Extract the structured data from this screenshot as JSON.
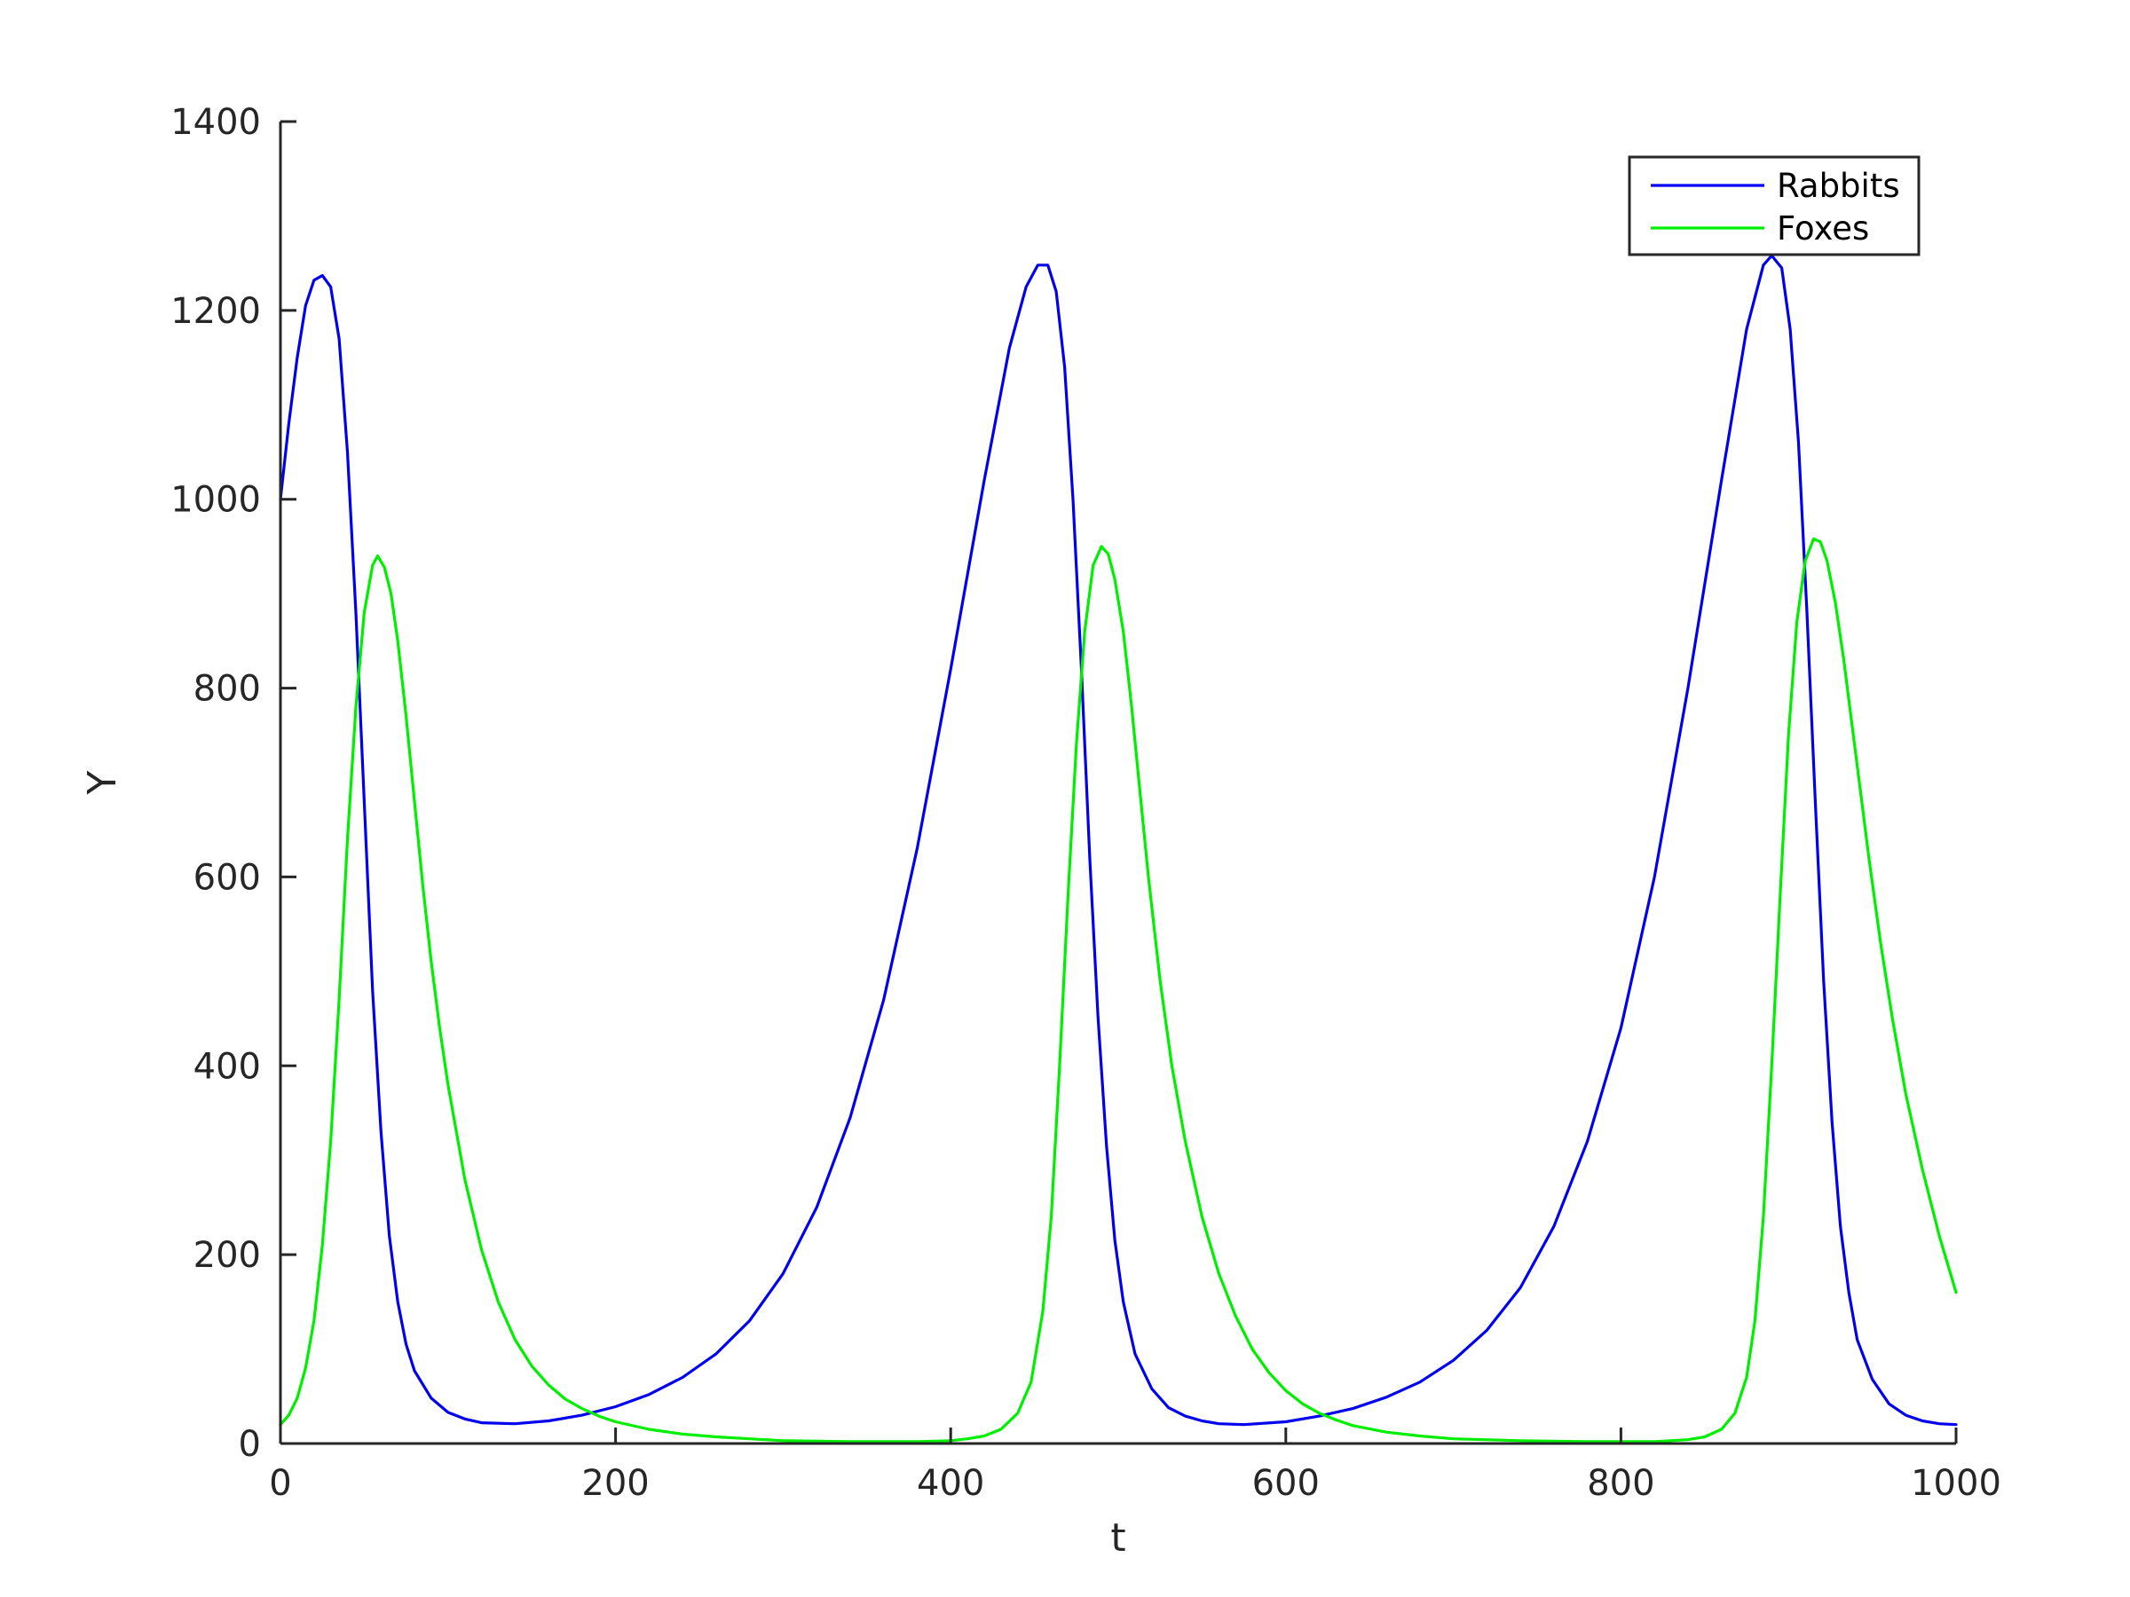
{
  "chart_data": {
    "type": "line",
    "title": "",
    "xlabel": "t",
    "ylabel": "Y",
    "xlim": [
      0,
      1000
    ],
    "ylim": [
      0,
      1400
    ],
    "xticks": [
      "0",
      "200",
      "400",
      "600",
      "800",
      "1000"
    ],
    "yticks": [
      "0",
      "200",
      "400",
      "600",
      "800",
      "1000",
      "1200",
      "1400"
    ],
    "grid": false,
    "legend_position": "top-right",
    "series": [
      {
        "name": "Rabbits",
        "color": "#0000ee",
        "points": [
          [
            0,
            1000
          ],
          [
            5,
            1080
          ],
          [
            10,
            1150
          ],
          [
            15,
            1205
          ],
          [
            20,
            1232
          ],
          [
            25,
            1237
          ],
          [
            30,
            1225
          ],
          [
            35,
            1170
          ],
          [
            40,
            1050
          ],
          [
            45,
            880
          ],
          [
            50,
            680
          ],
          [
            55,
            480
          ],
          [
            60,
            330
          ],
          [
            65,
            220
          ],
          [
            70,
            150
          ],
          [
            75,
            105
          ],
          [
            80,
            77
          ],
          [
            90,
            48
          ],
          [
            100,
            33
          ],
          [
            110,
            26
          ],
          [
            120,
            22
          ],
          [
            140,
            21
          ],
          [
            160,
            24
          ],
          [
            180,
            30
          ],
          [
            200,
            39
          ],
          [
            220,
            52
          ],
          [
            240,
            70
          ],
          [
            260,
            95
          ],
          [
            280,
            130
          ],
          [
            300,
            180
          ],
          [
            320,
            250
          ],
          [
            340,
            345
          ],
          [
            360,
            470
          ],
          [
            380,
            630
          ],
          [
            400,
            820
          ],
          [
            420,
            1020
          ],
          [
            435,
            1160
          ],
          [
            445,
            1225
          ],
          [
            452,
            1248
          ],
          [
            458,
            1248
          ],
          [
            463,
            1220
          ],
          [
            468,
            1140
          ],
          [
            473,
            1000
          ],
          [
            478,
            820
          ],
          [
            483,
            620
          ],
          [
            488,
            450
          ],
          [
            493,
            315
          ],
          [
            498,
            215
          ],
          [
            503,
            150
          ],
          [
            510,
            95
          ],
          [
            520,
            58
          ],
          [
            530,
            38
          ],
          [
            540,
            29
          ],
          [
            550,
            24
          ],
          [
            560,
            21
          ],
          [
            575,
            20
          ],
          [
            600,
            23
          ],
          [
            620,
            29
          ],
          [
            640,
            37
          ],
          [
            660,
            49
          ],
          [
            680,
            65
          ],
          [
            700,
            88
          ],
          [
            720,
            120
          ],
          [
            740,
            165
          ],
          [
            760,
            230
          ],
          [
            780,
            320
          ],
          [
            800,
            440
          ],
          [
            820,
            600
          ],
          [
            840,
            800
          ],
          [
            860,
            1020
          ],
          [
            875,
            1180
          ],
          [
            885,
            1248
          ],
          [
            890,
            1258
          ],
          [
            896,
            1245
          ],
          [
            901,
            1180
          ],
          [
            906,
            1060
          ],
          [
            911,
            880
          ],
          [
            916,
            680
          ],
          [
            921,
            490
          ],
          [
            926,
            340
          ],
          [
            931,
            230
          ],
          [
            936,
            160
          ],
          [
            941,
            110
          ],
          [
            950,
            68
          ],
          [
            960,
            42
          ],
          [
            970,
            30
          ],
          [
            980,
            24
          ],
          [
            990,
            21
          ],
          [
            1000,
            20
          ]
        ]
      },
      {
        "name": "Foxes",
        "color": "#00ee00",
        "points": [
          [
            0,
            20
          ],
          [
            5,
            30
          ],
          [
            10,
            48
          ],
          [
            15,
            80
          ],
          [
            20,
            130
          ],
          [
            25,
            210
          ],
          [
            30,
            320
          ],
          [
            35,
            470
          ],
          [
            40,
            640
          ],
          [
            45,
            780
          ],
          [
            50,
            880
          ],
          [
            55,
            930
          ],
          [
            58,
            940
          ],
          [
            62,
            928
          ],
          [
            66,
            900
          ],
          [
            70,
            850
          ],
          [
            75,
            770
          ],
          [
            80,
            680
          ],
          [
            85,
            590
          ],
          [
            90,
            510
          ],
          [
            95,
            440
          ],
          [
            100,
            380
          ],
          [
            110,
            280
          ],
          [
            120,
            205
          ],
          [
            130,
            150
          ],
          [
            140,
            110
          ],
          [
            150,
            82
          ],
          [
            160,
            62
          ],
          [
            170,
            47
          ],
          [
            180,
            37
          ],
          [
            190,
            29
          ],
          [
            200,
            23
          ],
          [
            220,
            15
          ],
          [
            240,
            10
          ],
          [
            260,
            7
          ],
          [
            280,
            5
          ],
          [
            300,
            3
          ],
          [
            340,
            2
          ],
          [
            380,
            2
          ],
          [
            400,
            3
          ],
          [
            410,
            5
          ],
          [
            420,
            8
          ],
          [
            430,
            15
          ],
          [
            440,
            32
          ],
          [
            448,
            65
          ],
          [
            455,
            140
          ],
          [
            460,
            240
          ],
          [
            465,
            400
          ],
          [
            470,
            580
          ],
          [
            475,
            740
          ],
          [
            480,
            860
          ],
          [
            485,
            930
          ],
          [
            490,
            950
          ],
          [
            494,
            942
          ],
          [
            498,
            915
          ],
          [
            503,
            860
          ],
          [
            508,
            780
          ],
          [
            513,
            690
          ],
          [
            518,
            600
          ],
          [
            525,
            490
          ],
          [
            532,
            400
          ],
          [
            540,
            320
          ],
          [
            550,
            240
          ],
          [
            560,
            180
          ],
          [
            570,
            135
          ],
          [
            580,
            100
          ],
          [
            590,
            75
          ],
          [
            600,
            56
          ],
          [
            610,
            42
          ],
          [
            620,
            32
          ],
          [
            630,
            25
          ],
          [
            640,
            19
          ],
          [
            660,
            12
          ],
          [
            680,
            8
          ],
          [
            700,
            5
          ],
          [
            740,
            3
          ],
          [
            780,
            2
          ],
          [
            820,
            2
          ],
          [
            840,
            4
          ],
          [
            850,
            7
          ],
          [
            860,
            15
          ],
          [
            868,
            32
          ],
          [
            875,
            70
          ],
          [
            880,
            130
          ],
          [
            885,
            240
          ],
          [
            890,
            400
          ],
          [
            895,
            580
          ],
          [
            900,
            750
          ],
          [
            905,
            870
          ],
          [
            910,
            935
          ],
          [
            915,
            958
          ],
          [
            919,
            955
          ],
          [
            923,
            935
          ],
          [
            928,
            890
          ],
          [
            933,
            830
          ],
          [
            938,
            760
          ],
          [
            943,
            690
          ],
          [
            948,
            620
          ],
          [
            955,
            530
          ],
          [
            962,
            450
          ],
          [
            970,
            370
          ],
          [
            980,
            290
          ],
          [
            990,
            220
          ],
          [
            1000,
            160
          ]
        ]
      }
    ]
  }
}
